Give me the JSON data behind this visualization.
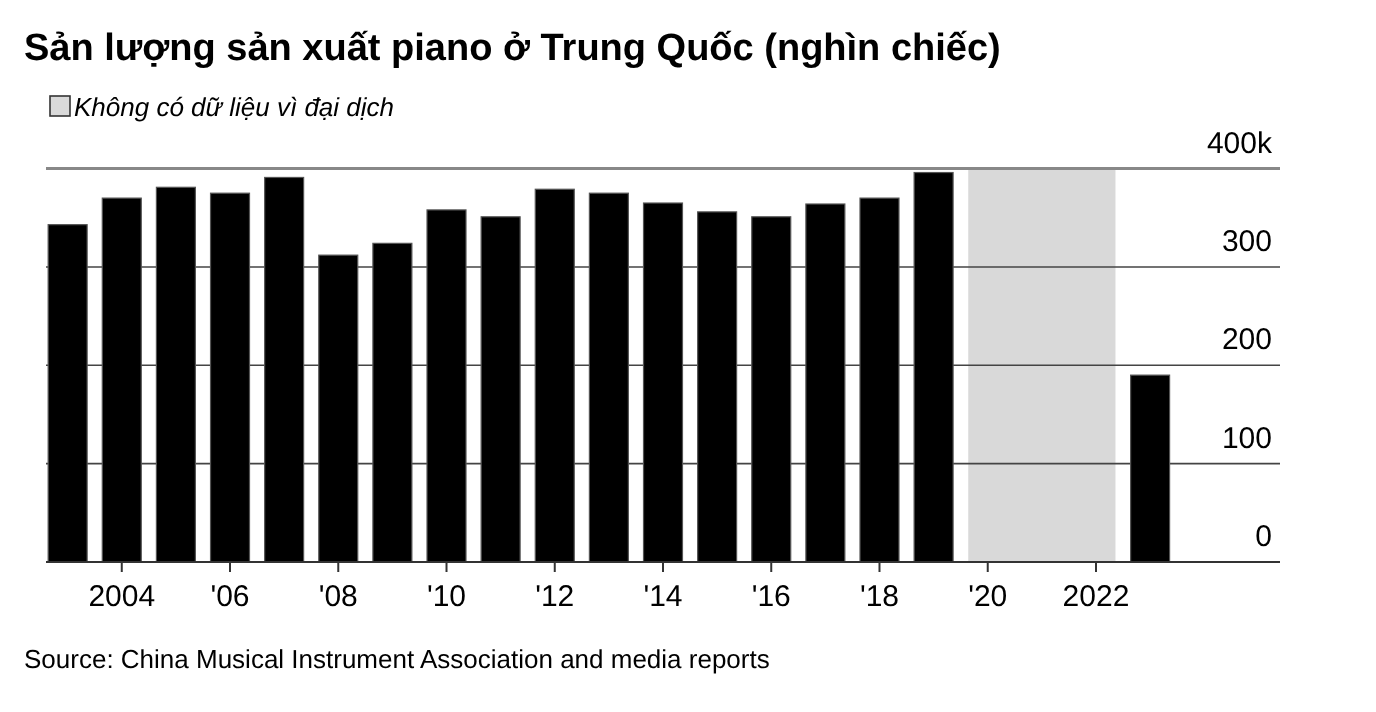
{
  "chart_data": {
    "type": "bar",
    "title": "Sản lượng sản xuất piano ở Trung Quốc (nghìn chiếc)",
    "x": [
      2003,
      2004,
      2005,
      2006,
      2007,
      2008,
      2009,
      2010,
      2011,
      2012,
      2013,
      2014,
      2015,
      2016,
      2017,
      2018,
      2019,
      2023
    ],
    "values": [
      343,
      370,
      381,
      375,
      391,
      312,
      324,
      358,
      351,
      379,
      375,
      365,
      356,
      351,
      364,
      370,
      396,
      190
    ],
    "color": "#000000",
    "xlim": [
      2002.6,
      2025.4
    ],
    "xticks": [
      2004,
      {
        "value": 2006,
        "label": "'06"
      },
      {
        "value": 2008,
        "label": "'08"
      },
      {
        "value": 2010,
        "label": "'10"
      },
      {
        "value": 2012,
        "label": "'12"
      },
      {
        "value": 2014,
        "label": "'14"
      },
      {
        "value": 2016,
        "label": "'16"
      },
      {
        "value": 2018,
        "label": "'18"
      },
      {
        "value": 2020,
        "label": "'20"
      },
      2022
    ],
    "ylim": [
      0,
      400
    ],
    "yticks": [
      0,
      100,
      200,
      300,
      {
        "value": 400,
        "label": "400k"
      }
    ],
    "grid": "y",
    "bands": [
      {
        "axis": "x",
        "from": 2019.64,
        "to": 2022.36,
        "label": "Không có dữ liệu vì đại dịch",
        "color": "#d9d9d9"
      }
    ],
    "legend": "top left",
    "annotations": [
      "Source: China Musical Instrument Association and media reports"
    ]
  }
}
